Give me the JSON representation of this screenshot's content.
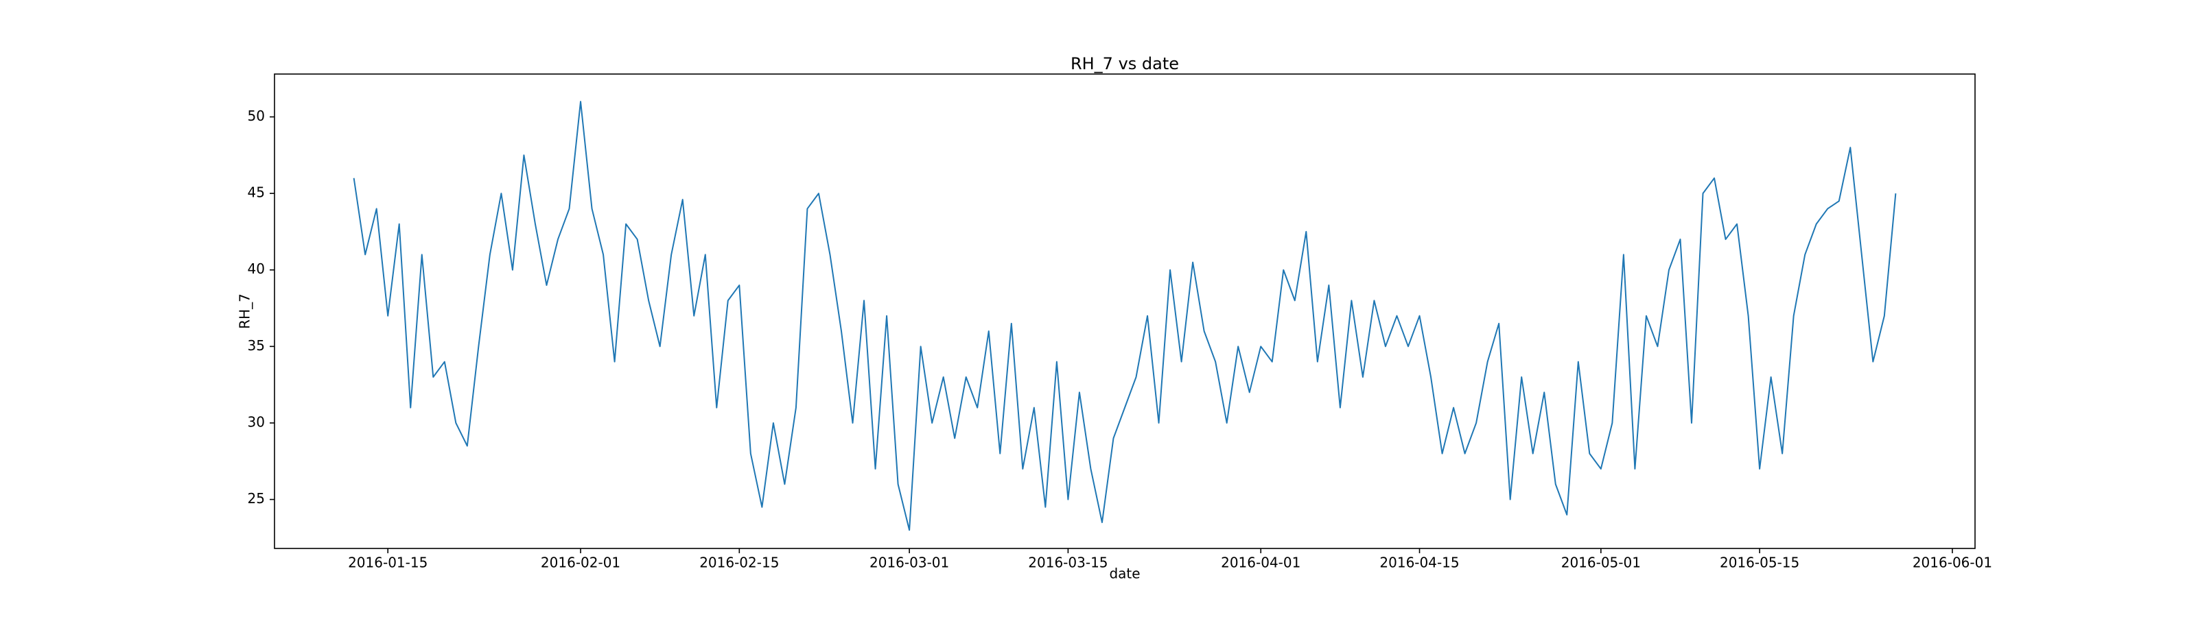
{
  "chart_data": {
    "type": "line",
    "title": "RH_7 vs date",
    "x_label": "date",
    "y_label": "RH_7",
    "x": [
      "2016-01-12",
      "2016-01-13",
      "2016-01-14",
      "2016-01-15",
      "2016-01-16",
      "2016-01-17",
      "2016-01-18",
      "2016-01-19",
      "2016-01-20",
      "2016-01-21",
      "2016-01-22",
      "2016-01-23",
      "2016-01-24",
      "2016-01-25",
      "2016-01-26",
      "2016-01-27",
      "2016-01-28",
      "2016-01-29",
      "2016-01-30",
      "2016-01-31",
      "2016-02-01",
      "2016-02-02",
      "2016-02-03",
      "2016-02-04",
      "2016-02-05",
      "2016-02-06",
      "2016-02-07",
      "2016-02-08",
      "2016-02-09",
      "2016-02-10",
      "2016-02-11",
      "2016-02-12",
      "2016-02-13",
      "2016-02-14",
      "2016-02-15",
      "2016-02-16",
      "2016-02-17",
      "2016-02-18",
      "2016-02-19",
      "2016-02-20",
      "2016-02-21",
      "2016-02-22",
      "2016-02-23",
      "2016-02-24",
      "2016-02-25",
      "2016-02-26",
      "2016-02-27",
      "2016-02-28",
      "2016-02-29",
      "2016-03-01",
      "2016-03-02",
      "2016-03-03",
      "2016-03-04",
      "2016-03-05",
      "2016-03-06",
      "2016-03-07",
      "2016-03-08",
      "2016-03-09",
      "2016-03-10",
      "2016-03-11",
      "2016-03-12",
      "2016-03-13",
      "2016-03-14",
      "2016-03-15",
      "2016-03-16",
      "2016-03-17",
      "2016-03-18",
      "2016-03-19",
      "2016-03-20",
      "2016-03-21",
      "2016-03-22",
      "2016-03-23",
      "2016-03-24",
      "2016-03-25",
      "2016-03-26",
      "2016-03-27",
      "2016-03-28",
      "2016-03-29",
      "2016-03-30",
      "2016-03-31",
      "2016-04-01",
      "2016-04-02",
      "2016-04-03",
      "2016-04-04",
      "2016-04-05",
      "2016-04-06",
      "2016-04-07",
      "2016-04-08",
      "2016-04-09",
      "2016-04-10",
      "2016-04-11",
      "2016-04-12",
      "2016-04-13",
      "2016-04-14",
      "2016-04-15",
      "2016-04-16",
      "2016-04-17",
      "2016-04-18",
      "2016-04-19",
      "2016-04-20",
      "2016-04-21",
      "2016-04-22",
      "2016-04-23",
      "2016-04-24",
      "2016-04-25",
      "2016-04-26",
      "2016-04-27",
      "2016-04-28",
      "2016-04-29",
      "2016-04-30",
      "2016-05-01",
      "2016-05-02",
      "2016-05-03",
      "2016-05-04",
      "2016-05-05",
      "2016-05-06",
      "2016-05-07",
      "2016-05-08",
      "2016-05-09",
      "2016-05-10",
      "2016-05-11",
      "2016-05-12",
      "2016-05-13",
      "2016-05-14",
      "2016-05-15",
      "2016-05-16",
      "2016-05-17",
      "2016-05-18",
      "2016-05-19",
      "2016-05-20",
      "2016-05-21",
      "2016-05-22",
      "2016-05-23",
      "2016-05-24",
      "2016-05-25",
      "2016-05-26",
      "2016-05-27"
    ],
    "series": [
      {
        "name": "RH_7",
        "color": "#1f77b4",
        "values": [
          46,
          41,
          44,
          37,
          43,
          31,
          41,
          33,
          34,
          30,
          28.5,
          35,
          41,
          45,
          40,
          47.5,
          43,
          39,
          42,
          44,
          51,
          44,
          41,
          34,
          43,
          42,
          38,
          35,
          41,
          44.6,
          37,
          41,
          31,
          38,
          39,
          28,
          24.5,
          30,
          26,
          31,
          44,
          45,
          41,
          36,
          30,
          38,
          27,
          37,
          26,
          23,
          35,
          30,
          33,
          29,
          33,
          31,
          36,
          28,
          36.5,
          27,
          31,
          24.5,
          34,
          25,
          32,
          27,
          23.5,
          29,
          31,
          33,
          37,
          30,
          40,
          34,
          40.5,
          36,
          34,
          30,
          35,
          32,
          35,
          34,
          40,
          38,
          42.5,
          34,
          39,
          31,
          38,
          33,
          38,
          35,
          37,
          35,
          37,
          33,
          28,
          31,
          28,
          30,
          34,
          36.5,
          25,
          33,
          28,
          32,
          26,
          24,
          34,
          28,
          27,
          30,
          41,
          27,
          37,
          35,
          40,
          42,
          30,
          45,
          46,
          42,
          43,
          37,
          27,
          33,
          28,
          37,
          41,
          43,
          44,
          44.5,
          48,
          41,
          34,
          37,
          45
        ]
      }
    ],
    "xlim": [
      "2016-01-05",
      "2016-06-03"
    ],
    "xticks": [
      "2016-01-15",
      "2016-02-01",
      "2016-02-15",
      "2016-03-01",
      "2016-03-15",
      "2016-04-01",
      "2016-04-15",
      "2016-05-01",
      "2016-05-15",
      "2016-06-01"
    ],
    "ylim": [
      21.8,
      52.8
    ],
    "yticks": [
      25,
      30,
      35,
      40,
      45,
      50
    ],
    "grid": false
  }
}
